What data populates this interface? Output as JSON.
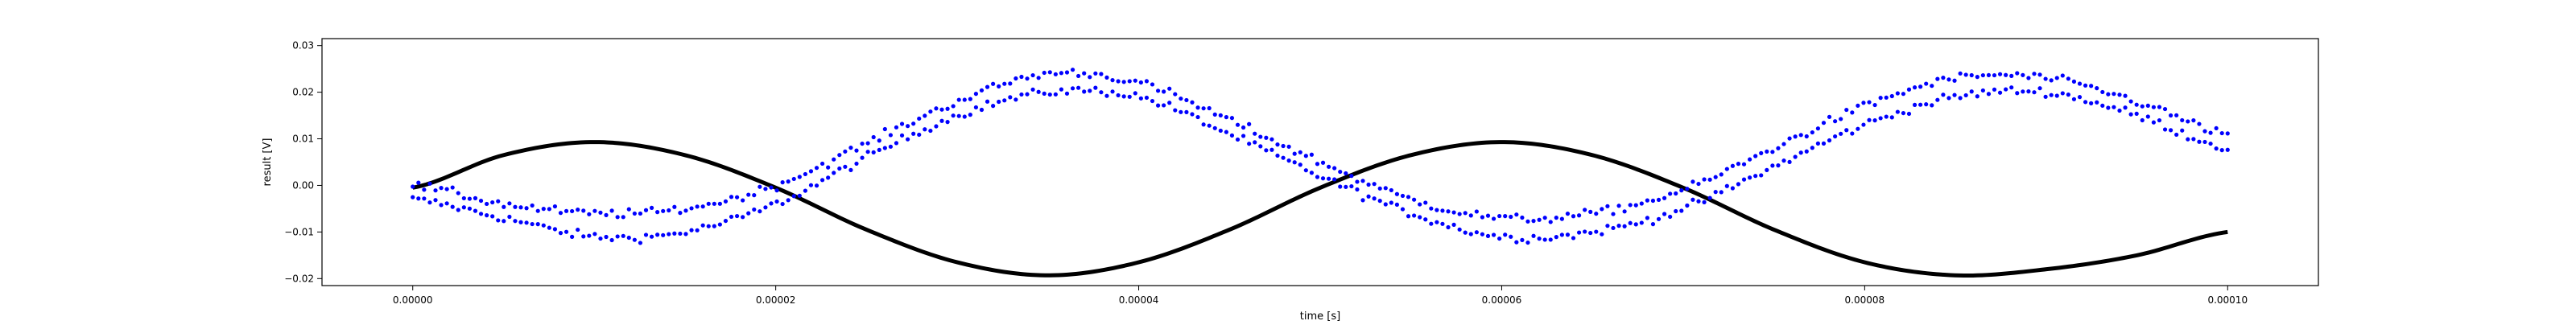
{
  "chart_data": {
    "type": "scatter",
    "title": "",
    "xlabel": "time [s]",
    "ylabel": "result [V]",
    "xlim": [
      -5e-06,
      0.000105
    ],
    "ylim": [
      -0.0215,
      0.0315
    ],
    "xticks": [
      0,
      2e-05,
      4e-05,
      6e-05,
      8e-05,
      0.0001
    ],
    "xtick_labels": [
      "0.00000",
      "0.00002",
      "0.00004",
      "0.00006",
      "0.00008",
      "0.00010"
    ],
    "yticks": [
      -0.02,
      -0.01,
      0.0,
      0.01,
      0.02,
      0.03
    ],
    "ytick_labels": [
      "−0.02",
      "−0.01",
      "0.00",
      "0.01",
      "0.02",
      "0.03"
    ],
    "grid": false,
    "legend": "none",
    "series": [
      {
        "kind": "line",
        "color": "#000000",
        "x": [
          0,
          5e-06,
          1e-05,
          1.5e-05,
          2e-05,
          2.5e-05,
          3e-05,
          3.5e-05,
          4e-05,
          4.5e-05,
          5e-05,
          5.5e-05,
          6e-05,
          6.5e-05,
          7e-05,
          7.5e-05,
          8e-05,
          8.5e-05,
          9e-05,
          9.5e-05,
          0.0001
        ],
        "y": [
          -0.0005,
          0.0065,
          0.0093,
          0.0065,
          -0.0005,
          -0.0095,
          -0.0165,
          -0.0193,
          -0.0165,
          -0.0095,
          -0.0005,
          0.0065,
          0.0093,
          0.0065,
          -0.0005,
          -0.0095,
          -0.0165,
          -0.0193,
          -0.018,
          -0.015,
          -0.01
        ]
      },
      {
        "kind": "scatter",
        "color": "#0000ff",
        "x": [
          0,
          5e-06,
          1e-05,
          1.5e-05,
          2e-05,
          2.5e-05,
          3e-05,
          3.5e-05,
          4e-05,
          4.5e-05,
          5e-05,
          5.5e-05,
          6e-05,
          6.5e-05,
          7e-05,
          7.5e-05,
          8e-05,
          8.5e-05,
          9e-05,
          9.5e-05,
          0.0001
        ],
        "y": [
          -0.003,
          -0.007,
          -0.011,
          -0.01,
          -0.004,
          0.006,
          0.015,
          0.02,
          0.019,
          0.011,
          0.002,
          -0.006,
          -0.011,
          -0.01,
          -0.005,
          0.004,
          0.013,
          0.019,
          0.02,
          0.015,
          0.008
        ]
      },
      {
        "kind": "scatter",
        "color": "#0000ff",
        "x": [
          0,
          5e-06,
          1e-05,
          1.5e-05,
          2e-05,
          2.5e-05,
          3e-05,
          3.5e-05,
          4e-05,
          4.5e-05,
          5e-05,
          5.5e-05,
          6e-05,
          6.5e-05,
          7e-05,
          7.5e-05,
          8e-05,
          8.5e-05,
          9e-05,
          9.5e-05,
          0.0001
        ],
        "y": [
          0.0,
          -0.004,
          -0.006,
          -0.005,
          0.0,
          0.009,
          0.018,
          0.024,
          0.022,
          0.014,
          0.005,
          -0.003,
          -0.007,
          -0.006,
          -0.001,
          0.008,
          0.017,
          0.023,
          0.023,
          0.018,
          0.011
        ]
      }
    ]
  }
}
